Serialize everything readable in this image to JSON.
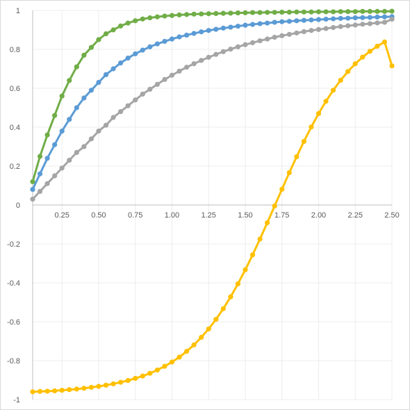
{
  "chart_data": {
    "type": "line",
    "title": "",
    "xlabel": "",
    "ylabel": "",
    "xlim": [
      0.05,
      2.5
    ],
    "ylim": [
      -1,
      1
    ],
    "grid": true,
    "legend": "none",
    "x_ticks": [
      0.25,
      0.5,
      0.75,
      1.0,
      1.25,
      1.5,
      1.75,
      2.0,
      2.25,
      2.5
    ],
    "x_tick_labels": [
      "0.25",
      "0.50",
      "0.75",
      "1.00",
      "1.25",
      "1.50",
      "1.75",
      "2.00",
      "2.25",
      "2.50"
    ],
    "y_ticks": [
      -1,
      -0.8,
      -0.6,
      -0.4,
      -0.2,
      0,
      0.2,
      0.4,
      0.6,
      0.8,
      1
    ],
    "y_tick_labels": [
      "-1",
      "-0.8",
      "-0.6",
      "-0.4",
      "-0.2",
      "0",
      "0.2",
      "0.4",
      "0.6",
      "0.8",
      "1"
    ],
    "x": [
      0.05,
      0.1,
      0.15,
      0.2,
      0.25,
      0.3,
      0.35,
      0.4,
      0.45,
      0.5,
      0.55,
      0.6,
      0.65,
      0.7,
      0.75,
      0.8,
      0.85,
      0.9,
      0.95,
      1.0,
      1.05,
      1.1,
      1.15,
      1.2,
      1.25,
      1.3,
      1.35,
      1.4,
      1.45,
      1.5,
      1.55,
      1.6,
      1.65,
      1.7,
      1.75,
      1.8,
      1.85,
      1.9,
      1.95,
      2.0,
      2.05,
      2.1,
      2.15,
      2.2,
      2.25,
      2.3,
      2.35,
      2.4,
      2.45,
      2.5
    ],
    "series": [
      {
        "color": "#70ad47",
        "values": [
          0.12,
          0.25,
          0.36,
          0.46,
          0.56,
          0.64,
          0.71,
          0.77,
          0.81,
          0.85,
          0.88,
          0.9,
          0.92,
          0.935,
          0.947,
          0.956,
          0.962,
          0.967,
          0.971,
          0.974,
          0.977,
          0.979,
          0.981,
          0.982,
          0.983,
          0.984,
          0.985,
          0.986,
          0.987,
          0.988,
          0.989,
          0.989,
          0.99,
          0.99,
          0.991,
          0.991,
          0.992,
          0.992,
          0.992,
          0.993,
          0.993,
          0.993,
          0.994,
          0.994,
          0.994,
          0.995,
          0.995,
          0.995,
          0.995,
          0.996
        ]
      },
      {
        "color": "#5b9bd5",
        "values": [
          0.08,
          0.16,
          0.24,
          0.31,
          0.38,
          0.44,
          0.5,
          0.55,
          0.59,
          0.63,
          0.67,
          0.7,
          0.73,
          0.755,
          0.777,
          0.796,
          0.813,
          0.828,
          0.841,
          0.853,
          0.864,
          0.873,
          0.882,
          0.89,
          0.897,
          0.903,
          0.909,
          0.914,
          0.919,
          0.924,
          0.928,
          0.932,
          0.935,
          0.939,
          0.942,
          0.944,
          0.947,
          0.949,
          0.951,
          0.953,
          0.955,
          0.957,
          0.959,
          0.96,
          0.962,
          0.963,
          0.964,
          0.966,
          0.967,
          0.968
        ]
      },
      {
        "color": "#a5a5a5",
        "values": [
          0.03,
          0.07,
          0.11,
          0.15,
          0.19,
          0.23,
          0.27,
          0.3,
          0.34,
          0.38,
          0.41,
          0.45,
          0.48,
          0.51,
          0.54,
          0.57,
          0.595,
          0.62,
          0.645,
          0.667,
          0.688,
          0.708,
          0.726,
          0.743,
          0.759,
          0.774,
          0.788,
          0.801,
          0.813,
          0.824,
          0.834,
          0.844,
          0.853,
          0.862,
          0.87,
          0.877,
          0.884,
          0.891,
          0.897,
          0.902,
          0.907,
          0.912,
          0.917,
          0.921,
          0.925,
          0.929,
          0.932,
          0.936,
          0.939,
          0.955
        ]
      },
      {
        "color": "#ffc000",
        "values": [
          -0.96,
          -0.958,
          -0.957,
          -0.955,
          -0.952,
          -0.949,
          -0.946,
          -0.942,
          -0.937,
          -0.932,
          -0.926,
          -0.919,
          -0.911,
          -0.902,
          -0.891,
          -0.879,
          -0.865,
          -0.848,
          -0.829,
          -0.807,
          -0.782,
          -0.752,
          -0.719,
          -0.68,
          -0.637,
          -0.588,
          -0.533,
          -0.472,
          -0.405,
          -0.333,
          -0.256,
          -0.175,
          -0.091,
          -0.005,
          0.081,
          0.166,
          0.248,
          0.327,
          0.401,
          0.47,
          0.533,
          0.59,
          0.641,
          0.686,
          0.726,
          0.76,
          0.79,
          0.816,
          0.838,
          0.715
        ]
      }
    ]
  }
}
